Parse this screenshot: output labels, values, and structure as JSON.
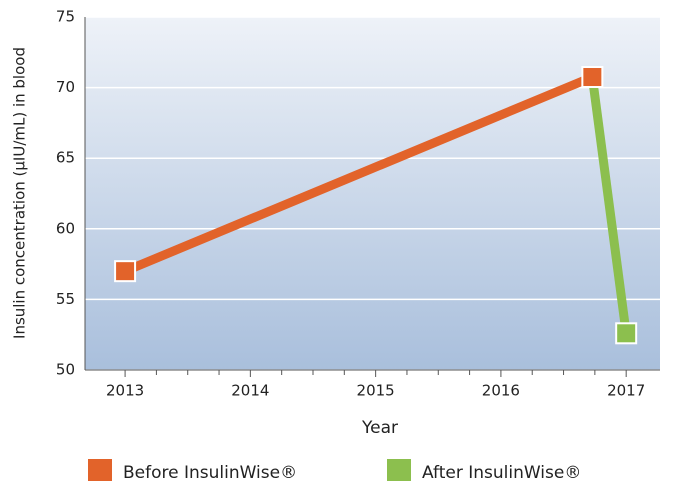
{
  "chart_data": {
    "type": "line",
    "y_label": "Insulin concentration (µIU/mL) in blood",
    "x_label": "Year",
    "series": [
      {
        "name": "Before InsulinWise®",
        "color": "#e2632a",
        "x": [
          2013,
          2016.73
        ],
        "values": [
          57,
          70.75
        ]
      },
      {
        "name": "After InsulinWise®",
        "color": "#8cbf4e",
        "x": [
          2016.73,
          2017
        ],
        "values": [
          70.75,
          52.6
        ]
      }
    ],
    "xlim": [
      2012.68,
      2017.27
    ],
    "xticks": [
      2013,
      2014,
      2015,
      2016,
      2017
    ],
    "x_minor_per_interval": 4,
    "ylim": [
      50,
      75
    ],
    "yticks": [
      50,
      55,
      60,
      65,
      70,
      75
    ],
    "grid": true,
    "legend": "bottom"
  }
}
